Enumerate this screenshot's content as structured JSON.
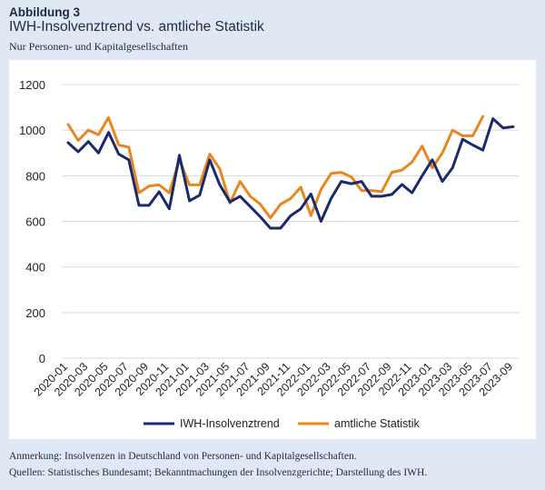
{
  "header": {
    "label": "Abbildung 3",
    "title": "IWH-Insolvenztrend vs. amtliche Statistik",
    "subtitle": "Nur Personen- und Kapitalgesellschaften"
  },
  "notes": {
    "remark": "Anmerkung: Insolvenzen in Deutschland von Personen- und Kapitalgesellschaften.",
    "sources": "Quellen: Statistisches Bundesamt; Bekanntmachungen der Insolvenzgerichte; Darstellung des IWH."
  },
  "colors": {
    "background": "#dfe8f3",
    "panel": "#ffffff",
    "text": "#1d2a44",
    "grid": "#d9d9d9"
  },
  "chart_data": {
    "type": "line",
    "title": "",
    "xlabel": "",
    "ylabel": "",
    "ylim": [
      0,
      1200
    ],
    "yticks": [
      0,
      200,
      400,
      600,
      800,
      1000,
      1200
    ],
    "grid": "horizontal",
    "legend_position": "bottom",
    "x": [
      "2020-01",
      "2020-02",
      "2020-03",
      "2020-04",
      "2020-05",
      "2020-06",
      "2020-07",
      "2020-08",
      "2020-09",
      "2020-10",
      "2020-11",
      "2020-12",
      "2021-01",
      "2021-02",
      "2021-03",
      "2021-04",
      "2021-05",
      "2021-06",
      "2021-07",
      "2021-08",
      "2021-09",
      "2021-10",
      "2021-11",
      "2021-12",
      "2022-01",
      "2022-02",
      "2022-03",
      "2022-04",
      "2022-05",
      "2022-06",
      "2022-07",
      "2022-08",
      "2022-09",
      "2022-10",
      "2022-11",
      "2022-12",
      "2023-01",
      "2023-02",
      "2023-03",
      "2023-04",
      "2023-05",
      "2023-06",
      "2023-07",
      "2023-08",
      "2023-09"
    ],
    "xtick_labels": [
      "2020-01",
      "2020-03",
      "2020-05",
      "2020-07",
      "2020-09",
      "2020-11",
      "2021-01",
      "2021-03",
      "2021-05",
      "2021-07",
      "2021-09",
      "2021-11",
      "2022-01",
      "2022-03",
      "2022-05",
      "2022-07",
      "2022-09",
      "2022-11",
      "2023-01",
      "2023-03",
      "2023-05",
      "2023-07",
      "2023-09"
    ],
    "series": [
      {
        "name": "IWH-Insolvenztrend",
        "color": "#1a2a6c",
        "values": [
          945,
          905,
          950,
          900,
          990,
          895,
          870,
          670,
          670,
          730,
          655,
          890,
          690,
          715,
          870,
          760,
          685,
          710,
          665,
          620,
          570,
          570,
          625,
          655,
          720,
          600,
          700,
          775,
          765,
          775,
          710,
          710,
          718,
          762,
          725,
          800,
          870,
          775,
          835,
          960,
          935,
          912,
          1050,
          1010,
          1015
        ]
      },
      {
        "name": "amtliche Statistik",
        "color": "#e8871e",
        "values": [
          1025,
          955,
          1000,
          980,
          1055,
          935,
          925,
          725,
          755,
          760,
          725,
          870,
          760,
          760,
          895,
          830,
          680,
          775,
          710,
          675,
          615,
          675,
          700,
          750,
          625,
          740,
          810,
          815,
          795,
          735,
          735,
          730,
          815,
          825,
          860,
          930,
          835,
          900,
          1000,
          975,
          975,
          1060,
          null,
          null,
          null
        ]
      }
    ]
  }
}
